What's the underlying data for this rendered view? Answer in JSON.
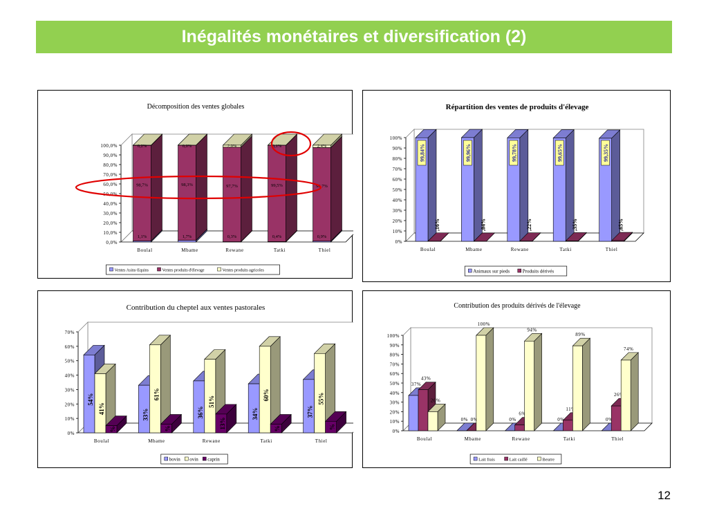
{
  "slide": {
    "title": "Inégalités monétaires et diversification (2)",
    "page_number": "12"
  },
  "chart_data": [
    {
      "id": "c1",
      "type": "bar",
      "stacked": true,
      "title": "Décomposition des ventes globales",
      "categories": [
        "Boulal",
        "Mbame",
        "Rewane",
        "Tatki",
        "Thiel"
      ],
      "series": [
        {
          "name": "Ventes Asins-Equins",
          "color": "#9999ff",
          "values": [
            1.1,
            1.7,
            0.3,
            0.4,
            0.9
          ]
        },
        {
          "name": "Ventes produits d'élevage",
          "color": "#993366",
          "values": [
            98.7,
            98.3,
            97.7,
            99.5,
            96.7
          ]
        },
        {
          "name": "Ventes produits agricoles",
          "color": "#ffffcc",
          "values": [
            0.2,
            0.0,
            2.0,
            0.1,
            2.4
          ]
        }
      ],
      "data_labels": [
        [
          "1,1%",
          "98,7%",
          "0,2%"
        ],
        [
          "1,7%",
          "98,3%",
          "0,0%"
        ],
        [
          "0,3%",
          "97,7%",
          "2,0%"
        ],
        [
          "0,4%",
          "99,5%",
          "0,1%"
        ],
        [
          "0,9%",
          "96,7%",
          "2,4%"
        ]
      ],
      "y_ticks": [
        "0,0%",
        "10,0%",
        "20,0%",
        "30,0%",
        "40,0%",
        "50,0%",
        "60,0%",
        "70,0%",
        "80,0%",
        "90,0%",
        "100,0%"
      ],
      "ylim": [
        0,
        100
      ],
      "legend": "bottom",
      "annotations": "red ellipses around Thiel agricultural share and the livestock-products row"
    },
    {
      "id": "c2",
      "type": "bar",
      "stacked": false,
      "title": "Répartition des ventes de produits d'élevage",
      "categories": [
        "Boulal",
        "Mbame",
        "Rewane",
        "Tatki",
        "Thiel"
      ],
      "series": [
        {
          "name": "Animaux sur pieds",
          "color": "#9999ff",
          "values": [
            99.84,
            99.96,
            99.78,
            99.65,
            99.35
          ]
        },
        {
          "name": "Produits dérivés",
          "color": "#993366",
          "values": [
            0.16,
            0.04,
            0.22,
            0.35,
            0.65
          ]
        }
      ],
      "data_labels": [
        [
          "99,84%",
          ",16%"
        ],
        [
          "99,96%",
          ",04%"
        ],
        [
          "99,78%",
          ",22%"
        ],
        [
          "99,65%",
          ",35%"
        ],
        [
          "99,35%",
          ",65%"
        ]
      ],
      "y_ticks": [
        "0%",
        "10%",
        "20%",
        "30%",
        "40%",
        "50%",
        "60%",
        "70%",
        "80%",
        "90%",
        "100%"
      ],
      "ylim": [
        0,
        100
      ],
      "legend": "bottom"
    },
    {
      "id": "c3",
      "type": "bar",
      "stacked": false,
      "title": "Contribution du cheptel aux ventes pastorales",
      "categories": [
        "Boulal",
        "Mbame",
        "Rewane",
        "Tatki",
        "Thiel"
      ],
      "series": [
        {
          "name": "bovin",
          "color": "#9999ff",
          "values": [
            54,
            33,
            36,
            34,
            37
          ]
        },
        {
          "name": "ovin",
          "color": "#ffffcc",
          "values": [
            41,
            61,
            51,
            60,
            55
          ]
        },
        {
          "name": "caprin",
          "color": "#660066",
          "values": [
            5,
            6,
            13,
            6,
            8
          ]
        }
      ],
      "data_labels": [
        [
          "54%",
          "41%",
          "%"
        ],
        [
          "33%",
          "61%",
          "%"
        ],
        [
          "36%",
          "51%",
          "13%"
        ],
        [
          "34%",
          "60%",
          "%"
        ],
        [
          "37%",
          "55%",
          "%"
        ]
      ],
      "y_ticks": [
        "0%",
        "10%",
        "20%",
        "30%",
        "40%",
        "50%",
        "60%",
        "70%"
      ],
      "ylim": [
        0,
        70
      ],
      "legend": "bottom"
    },
    {
      "id": "c4",
      "type": "bar",
      "stacked": false,
      "title": "Contribution des produits dérivés de l'élevage",
      "categories": [
        "Boulal",
        "Mbame",
        "Rewane",
        "Tatki",
        "Thiel"
      ],
      "series": [
        {
          "name": "Lait frais",
          "color": "#9999ff",
          "values": [
            37,
            0,
            0,
            0,
            0
          ]
        },
        {
          "name": "Lait caillé",
          "color": "#993366",
          "values": [
            43,
            0,
            6,
            11,
            26
          ]
        },
        {
          "name": "Beurre",
          "color": "#ffffcc",
          "values": [
            20,
            100,
            94,
            89,
            74
          ]
        }
      ],
      "data_labels": [
        [
          "37%",
          "43%",
          "20%"
        ],
        [
          "0%",
          "0%",
          "100%"
        ],
        [
          "0%",
          "6%",
          "94%"
        ],
        [
          "0%",
          "11%",
          "89%"
        ],
        [
          "0%",
          "26%",
          "74%"
        ]
      ],
      "y_ticks": [
        "0%",
        "10%",
        "20%",
        "30%",
        "40%",
        "50%",
        "60%",
        "70%",
        "80%",
        "90%",
        "100%"
      ],
      "ylim": [
        0,
        100
      ],
      "legend": "bottom"
    }
  ]
}
